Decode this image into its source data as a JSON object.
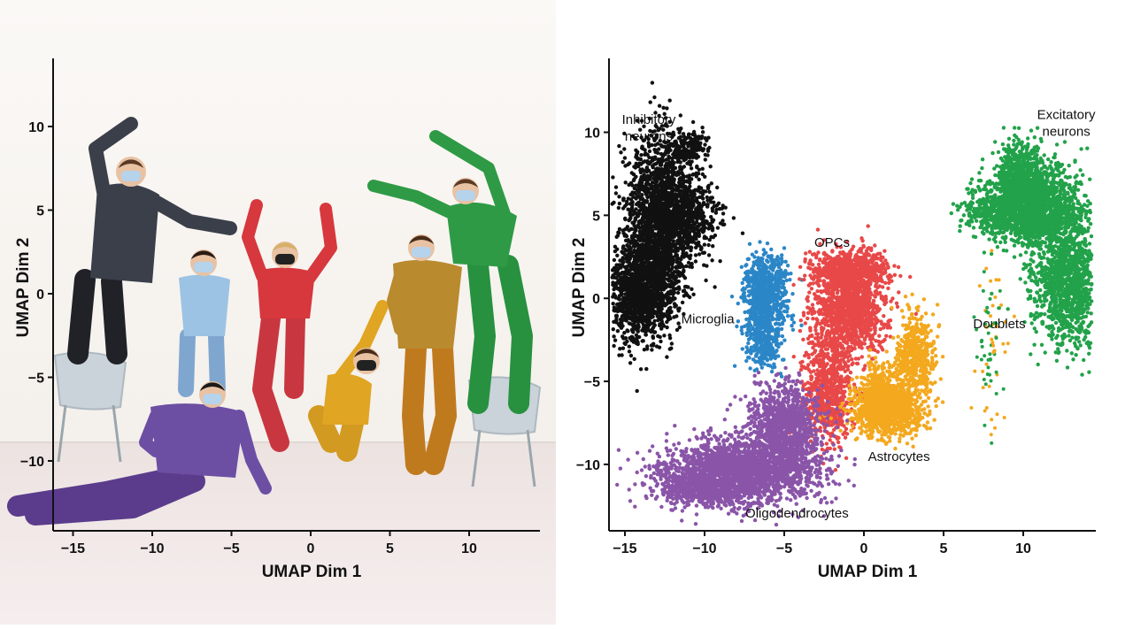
{
  "photo": {
    "xlabel": "UMAP Dim 1",
    "ylabel": "UMAP Dim 2",
    "xticks": [
      -15,
      -10,
      -5,
      0,
      5,
      10
    ],
    "yticks": [
      10,
      5,
      0,
      -5,
      -10
    ],
    "people": [
      {
        "name": "person-dark-sweater",
        "color": "#3b3f4a"
      },
      {
        "name": "person-light-blue",
        "color": "#9cc3e3"
      },
      {
        "name": "person-purple-plaid",
        "color": "#6c4fa3"
      },
      {
        "name": "person-red",
        "color": "#d7383d"
      },
      {
        "name": "person-yellow",
        "color": "#e0a522"
      },
      {
        "name": "person-yellow-plaid",
        "color": "#b98a2e"
      },
      {
        "name": "person-green",
        "color": "#2f9a45"
      }
    ]
  },
  "chart_data": {
    "type": "scatter",
    "xlabel": "UMAP Dim 1",
    "ylabel": "UMAP Dim 2",
    "xlim": [
      -16,
      14.5
    ],
    "ylim": [
      -14,
      14
    ],
    "xticks": [
      -15,
      -10,
      -5,
      0,
      5,
      10
    ],
    "yticks": [
      10,
      5,
      0,
      -5,
      -10
    ],
    "grid": false,
    "series": [
      {
        "name": "Inhibitory neurons",
        "color": "#111111",
        "label_lines": [
          "Inhibitory",
          "neurons"
        ],
        "label_at": [
          -13.5,
          10.5
        ],
        "blobs": [
          [
            -14.0,
            0.5,
            1.4,
            2.0,
            1400
          ],
          [
            -12.8,
            5.0,
            1.4,
            3.2,
            1600
          ],
          [
            -11.2,
            5.0,
            1.4,
            1.5,
            500
          ],
          [
            -11.0,
            9.2,
            0.8,
            0.7,
            150
          ]
        ]
      },
      {
        "name": "Excitatory neurons",
        "color": "#22a24a",
        "label_lines": [
          "Excitatory",
          "neurons"
        ],
        "label_at": [
          12.7,
          10.8
        ],
        "blobs": [
          [
            11.0,
            5.5,
            1.8,
            1.6,
            1500
          ],
          [
            12.8,
            1.0,
            1.5,
            2.4,
            1300
          ],
          [
            9.8,
            7.5,
            1.0,
            1.4,
            500
          ],
          [
            8.3,
            5.2,
            1.4,
            1.0,
            400
          ]
        ]
      },
      {
        "name": "Microglia",
        "color": "#2b86c7",
        "label_lines": [
          "Microglia"
        ],
        "label_at": [
          -9.8,
          -1.5
        ],
        "blobs": [
          [
            -6.2,
            0.2,
            0.9,
            1.6,
            700
          ],
          [
            -6.3,
            -2.5,
            0.8,
            1.3,
            300
          ]
        ]
      },
      {
        "name": "OPCs",
        "color": "#e84848",
        "label_lines": [
          "OPCs"
        ],
        "label_at": [
          -2.0,
          3.1
        ],
        "blobs": [
          [
            -1.0,
            -0.5,
            1.5,
            2.0,
            1300
          ],
          [
            -2.2,
            -5.5,
            1.0,
            2.0,
            700
          ],
          [
            -0.8,
            1.8,
            1.6,
            0.7,
            500
          ]
        ]
      },
      {
        "name": "Astrocytes",
        "color": "#f3a81e",
        "label_lines": [
          "Astrocytes"
        ],
        "label_at": [
          2.2,
          -9.8
        ],
        "blobs": [
          [
            1.5,
            -6.8,
            1.5,
            1.0,
            900
          ],
          [
            3.2,
            -3.5,
            0.8,
            1.7,
            500
          ],
          [
            1.0,
            -5.8,
            0.9,
            1.2,
            400
          ]
        ]
      },
      {
        "name": "Oligodendrocytes",
        "color": "#8a55a8",
        "label_lines": [
          "Oligodendrocytes"
        ],
        "label_at": [
          -4.2,
          -13.2
        ],
        "blobs": [
          [
            -8.0,
            -10.5,
            3.2,
            1.3,
            2000
          ],
          [
            -5.0,
            -8.0,
            1.5,
            1.8,
            1200
          ],
          [
            -10.5,
            -11.5,
            1.5,
            0.6,
            400
          ]
        ]
      },
      {
        "name": "Doublets",
        "color": "",
        "label_lines": [
          "Doublets"
        ],
        "label_at": [
          8.5,
          -1.8
        ],
        "blobs": [
          [
            8.0,
            -3.0,
            0.8,
            3.5,
            80
          ]
        ]
      }
    ]
  }
}
